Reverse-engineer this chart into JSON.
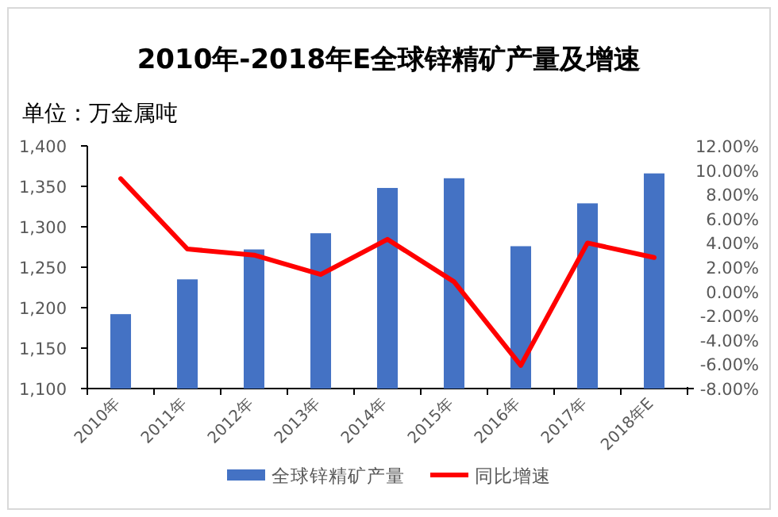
{
  "chart_data": {
    "type": "bar",
    "title": "2010年-2018年E全球锌精矿产量及增速",
    "subtitle": "单位：万金属吨",
    "categories": [
      "2010年",
      "2011年",
      "2012年",
      "2013年",
      "2014年",
      "2015年",
      "2016年",
      "2017年",
      "2018年E"
    ],
    "series": [
      {
        "name": "全球锌精矿产量",
        "color": "#4472c4",
        "values": [
          1192,
          1235,
          1272,
          1292,
          1348,
          1360,
          1276,
          1329,
          1366
        ]
      },
      {
        "name": "同比增速",
        "type": "line",
        "axis": "y2",
        "color": "#ff0000",
        "values": [
          9.3,
          3.5,
          3.0,
          1.4,
          4.3,
          0.8,
          -6.1,
          4.0,
          2.8
        ]
      }
    ],
    "ylim": [
      1100,
      1400
    ],
    "yticks": [
      {
        "value": 1100,
        "label": "1,100"
      },
      {
        "value": 1150,
        "label": "1,150"
      },
      {
        "value": 1200,
        "label": "1,200"
      },
      {
        "value": 1250,
        "label": "1,250"
      },
      {
        "value": 1300,
        "label": "1,300"
      },
      {
        "value": 1350,
        "label": "1,350"
      },
      {
        "value": 1400,
        "label": "1,400"
      }
    ],
    "y2lim": [
      -8,
      12
    ],
    "y2ticks": [
      {
        "value": -8,
        "label": "-8.00%"
      },
      {
        "value": -6,
        "label": "-6.00%"
      },
      {
        "value": -4,
        "label": "-4.00%"
      },
      {
        "value": -2,
        "label": "-2.00%"
      },
      {
        "value": 0,
        "label": "0.00%"
      },
      {
        "value": 2,
        "label": "2.00%"
      },
      {
        "value": 4,
        "label": "4.00%"
      },
      {
        "value": 6,
        "label": "6.00%"
      },
      {
        "value": 8,
        "label": "8.00%"
      },
      {
        "value": 10,
        "label": "10.00%"
      },
      {
        "value": 12,
        "label": "12.00%"
      }
    ],
    "legend": "bottom"
  }
}
